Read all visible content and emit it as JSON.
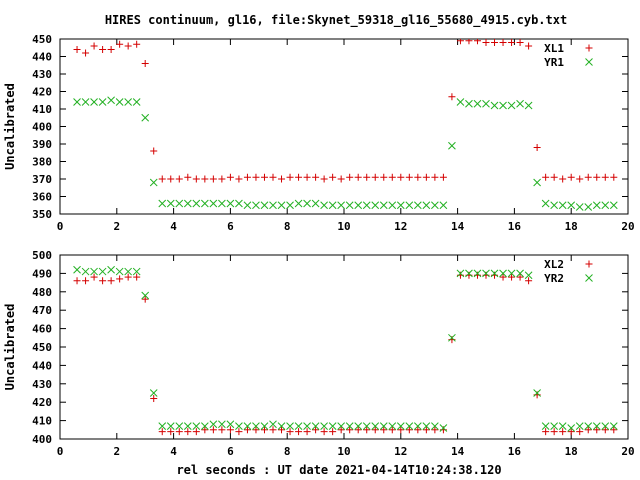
{
  "title": "HIRES continuum, gl16, file:Skynet_59318_gl16_55680_4915.cyb.txt",
  "xlabel": "rel seconds : UT date 2021-04-14T10:24:38.120",
  "colors": {
    "plus": "#d40000",
    "cross": "#22b022"
  },
  "chart_data": [
    {
      "type": "scatter",
      "ylabel": "Uncalibrated",
      "xlim": [
        0,
        20
      ],
      "ylim": [
        350,
        450
      ],
      "xticks": [
        0,
        2,
        4,
        6,
        8,
        10,
        12,
        14,
        16,
        18,
        20
      ],
      "yticks": [
        350,
        360,
        370,
        380,
        390,
        400,
        410,
        420,
        430,
        440,
        450
      ],
      "grid": false,
      "legend_position": "top-right",
      "series": [
        {
          "name": "XL1",
          "marker": "plus",
          "x": [
            0.6,
            0.9,
            1.2,
            1.5,
            1.8,
            2.1,
            2.4,
            2.7,
            3.0,
            3.3,
            3.6,
            3.9,
            4.2,
            4.5,
            4.8,
            5.1,
            5.4,
            5.7,
            6.0,
            6.3,
            6.6,
            6.9,
            7.2,
            7.5,
            7.8,
            8.1,
            8.4,
            8.7,
            9.0,
            9.3,
            9.6,
            9.9,
            10.2,
            10.5,
            10.8,
            11.1,
            11.4,
            11.7,
            12.0,
            12.3,
            12.6,
            12.9,
            13.2,
            13.5,
            13.8,
            14.1,
            14.4,
            14.7,
            15.0,
            15.3,
            15.6,
            15.9,
            16.2,
            16.5,
            16.8,
            17.1,
            17.4,
            17.7,
            18.0,
            18.3,
            18.6,
            18.9,
            19.2,
            19.5
          ],
          "y": [
            444,
            442,
            446,
            444,
            444,
            447,
            446,
            447,
            436,
            386,
            370,
            370,
            370,
            371,
            370,
            370,
            370,
            370,
            371,
            370,
            371,
            371,
            371,
            371,
            370,
            371,
            371,
            371,
            371,
            370,
            371,
            370,
            371,
            371,
            371,
            371,
            371,
            371,
            371,
            371,
            371,
            371,
            371,
            371,
            417,
            449,
            449,
            449,
            448,
            448,
            448,
            448,
            448,
            446,
            388,
            371,
            371,
            370,
            371,
            370,
            371,
            371,
            371,
            371
          ]
        },
        {
          "name": "YR1",
          "marker": "cross",
          "x": [
            0.6,
            0.9,
            1.2,
            1.5,
            1.8,
            2.1,
            2.4,
            2.7,
            3.0,
            3.3,
            3.6,
            3.9,
            4.2,
            4.5,
            4.8,
            5.1,
            5.4,
            5.7,
            6.0,
            6.3,
            6.6,
            6.9,
            7.2,
            7.5,
            7.8,
            8.1,
            8.4,
            8.7,
            9.0,
            9.3,
            9.6,
            9.9,
            10.2,
            10.5,
            10.8,
            11.1,
            11.4,
            11.7,
            12.0,
            12.3,
            12.6,
            12.9,
            13.2,
            13.5,
            13.8,
            14.1,
            14.4,
            14.7,
            15.0,
            15.3,
            15.6,
            15.9,
            16.2,
            16.5,
            16.8,
            17.1,
            17.4,
            17.7,
            18.0,
            18.3,
            18.6,
            18.9,
            19.2,
            19.5
          ],
          "y": [
            414,
            414,
            414,
            414,
            415,
            414,
            414,
            414,
            405,
            368,
            356,
            356,
            356,
            356,
            356,
            356,
            356,
            356,
            356,
            356,
            355,
            355,
            355,
            355,
            355,
            355,
            356,
            356,
            356,
            355,
            355,
            355,
            355,
            355,
            355,
            355,
            355,
            355,
            355,
            355,
            355,
            355,
            355,
            355,
            389,
            414,
            413,
            413,
            413,
            412,
            412,
            412,
            413,
            412,
            368,
            356,
            355,
            355,
            355,
            354,
            354,
            355,
            355,
            355
          ]
        }
      ]
    },
    {
      "type": "scatter",
      "ylabel": "Uncalibrated",
      "xlim": [
        0,
        20
      ],
      "ylim": [
        400,
        500
      ],
      "xticks": [
        0,
        2,
        4,
        6,
        8,
        10,
        12,
        14,
        16,
        18,
        20
      ],
      "yticks": [
        400,
        410,
        420,
        430,
        440,
        450,
        460,
        470,
        480,
        490,
        500
      ],
      "grid": false,
      "legend_position": "top-right",
      "series": [
        {
          "name": "XL2",
          "marker": "plus",
          "x": [
            0.6,
            0.9,
            1.2,
            1.5,
            1.8,
            2.1,
            2.4,
            2.7,
            3.0,
            3.3,
            3.6,
            3.9,
            4.2,
            4.5,
            4.8,
            5.1,
            5.4,
            5.7,
            6.0,
            6.3,
            6.6,
            6.9,
            7.2,
            7.5,
            7.8,
            8.1,
            8.4,
            8.7,
            9.0,
            9.3,
            9.6,
            9.9,
            10.2,
            10.5,
            10.8,
            11.1,
            11.4,
            11.7,
            12.0,
            12.3,
            12.6,
            12.9,
            13.2,
            13.5,
            13.8,
            14.1,
            14.4,
            14.7,
            15.0,
            15.3,
            15.6,
            15.9,
            16.2,
            16.5,
            16.8,
            17.1,
            17.4,
            17.7,
            18.0,
            18.3,
            18.6,
            18.9,
            19.2,
            19.5
          ],
          "y": [
            486,
            486,
            488,
            486,
            486,
            487,
            488,
            488,
            476,
            422,
            404,
            404,
            404,
            404,
            404,
            405,
            405,
            405,
            405,
            404,
            405,
            405,
            405,
            405,
            405,
            404,
            404,
            404,
            405,
            404,
            404,
            405,
            405,
            405,
            405,
            405,
            405,
            405,
            405,
            405,
            405,
            405,
            405,
            405,
            454,
            489,
            489,
            489,
            489,
            489,
            488,
            488,
            488,
            486,
            424,
            404,
            404,
            404,
            404,
            404,
            405,
            405,
            405,
            405
          ]
        },
        {
          "name": "YR2",
          "marker": "cross",
          "x": [
            0.6,
            0.9,
            1.2,
            1.5,
            1.8,
            2.1,
            2.4,
            2.7,
            3.0,
            3.3,
            3.6,
            3.9,
            4.2,
            4.5,
            4.8,
            5.1,
            5.4,
            5.7,
            6.0,
            6.3,
            6.6,
            6.9,
            7.2,
            7.5,
            7.8,
            8.1,
            8.4,
            8.7,
            9.0,
            9.3,
            9.6,
            9.9,
            10.2,
            10.5,
            10.8,
            11.1,
            11.4,
            11.7,
            12.0,
            12.3,
            12.6,
            12.9,
            13.2,
            13.5,
            13.8,
            14.1,
            14.4,
            14.7,
            15.0,
            15.3,
            15.6,
            15.9,
            16.2,
            16.5,
            16.8,
            17.1,
            17.4,
            17.7,
            18.0,
            18.3,
            18.6,
            18.9,
            19.2,
            19.5
          ],
          "y": [
            492,
            491,
            491,
            491,
            492,
            491,
            491,
            491,
            478,
            425,
            407,
            407,
            407,
            407,
            407,
            407,
            408,
            408,
            408,
            407,
            407,
            407,
            407,
            408,
            407,
            407,
            407,
            407,
            407,
            407,
            407,
            407,
            407,
            407,
            407,
            407,
            407,
            407,
            407,
            407,
            407,
            407,
            407,
            406,
            455,
            490,
            490,
            490,
            490,
            490,
            490,
            490,
            490,
            489,
            425,
            407,
            407,
            407,
            406,
            407,
            407,
            407,
            407,
            407
          ]
        }
      ]
    }
  ]
}
